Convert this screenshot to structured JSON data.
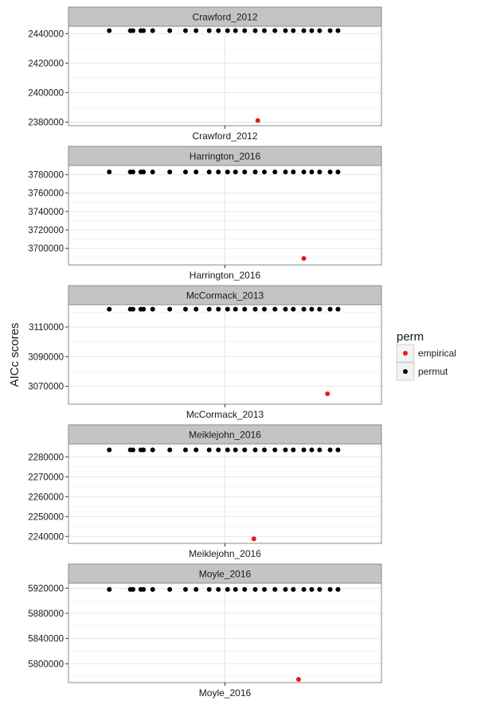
{
  "chart_data": {
    "type": "scatter",
    "ylabel": "AICc scores",
    "legend": {
      "title": "perm",
      "placement": "right",
      "entries": [
        {
          "label": "empirical",
          "color": "#e41a1c"
        },
        {
          "label": "permut",
          "color": "#000000"
        }
      ]
    },
    "grid": true,
    "panels": [
      {
        "name": "Crawford_2012",
        "category": "Crawford_2012",
        "ylim": [
          2377500,
          2445000
        ],
        "yticks": [
          2380000,
          2400000,
          2420000,
          2440000
        ],
        "ytick_labels": [
          "2380000",
          "2400000",
          "2420000",
          "2440000"
        ],
        "empirical": 2381000,
        "permut": [
          2442000,
          2442000,
          2442000,
          2442000,
          2442000,
          2442000,
          2442000,
          2442000,
          2442000,
          2442000,
          2442000,
          2442000,
          2442000,
          2442000,
          2442000,
          2442000,
          2442000,
          2442000,
          2442000,
          2442000,
          2442000,
          2442000,
          2442000,
          2442000
        ]
      },
      {
        "name": "Harrington_2016",
        "category": "Harrington_2016",
        "ylim": [
          3682000,
          3790000
        ],
        "yticks": [
          3700000,
          3720000,
          3740000,
          3760000,
          3780000
        ],
        "ytick_labels": [
          "3700000",
          "3720000",
          "3740000",
          "3760000",
          "3780000"
        ],
        "empirical": 3689000,
        "permut": [
          3783000,
          3783000,
          3783000,
          3783000,
          3783000,
          3783000,
          3783000,
          3783000,
          3783000,
          3783000,
          3783000,
          3783000,
          3783000,
          3783000,
          3783000,
          3783000,
          3783000,
          3783000,
          3783000,
          3783000,
          3783000,
          3783000,
          3783000,
          3783000
        ]
      },
      {
        "name": "McCormack_2013",
        "category": "McCormack_2013",
        "ylim": [
          3058000,
          3125000
        ],
        "yticks": [
          3070000,
          3090000,
          3110000
        ],
        "ytick_labels": [
          "3070000",
          "3090000",
          "3110000"
        ],
        "empirical": 3065000,
        "permut": [
          3122000,
          3122000,
          3122000,
          3122000,
          3122000,
          3122000,
          3122000,
          3122000,
          3122000,
          3122000,
          3122000,
          3122000,
          3122000,
          3122000,
          3122000,
          3122000,
          3122000,
          3122000,
          3122000,
          3122000,
          3122000,
          3122000,
          3122000,
          3122000
        ]
      },
      {
        "name": "Meiklejohn_2016",
        "category": "Meiklejohn_2016",
        "ylim": [
          2236500,
          2286500
        ],
        "yticks": [
          2240000,
          2250000,
          2260000,
          2270000,
          2280000
        ],
        "ytick_labels": [
          "2240000",
          "2250000",
          "2260000",
          "2270000",
          "2280000"
        ],
        "empirical": 2238800,
        "permut": [
          2283500,
          2283500,
          2283500,
          2283500,
          2283500,
          2283500,
          2283500,
          2283500,
          2283500,
          2283500,
          2283500,
          2283500,
          2283500,
          2283500,
          2283500,
          2283500,
          2283500,
          2283500,
          2283500,
          2283500,
          2283500,
          2283500,
          2283500,
          2283500
        ]
      },
      {
        "name": "Moyle_2016",
        "category": "Moyle_2016",
        "ylim": [
          5770000,
          5928000
        ],
        "yticks": [
          5800000,
          5840000,
          5880000,
          5920000
        ],
        "ytick_labels": [
          "5800000",
          "5840000",
          "5880000",
          "5920000"
        ],
        "empirical": 5775000,
        "permut": [
          5918000,
          5918000,
          5918000,
          5918000,
          5918000,
          5918000,
          5918000,
          5918000,
          5918000,
          5918000,
          5918000,
          5918000,
          5918000,
          5918000,
          5918000,
          5918000,
          5918000,
          5918000,
          5918000,
          5918000,
          5918000,
          5918000,
          5918000,
          5918000
        ]
      }
    ]
  }
}
